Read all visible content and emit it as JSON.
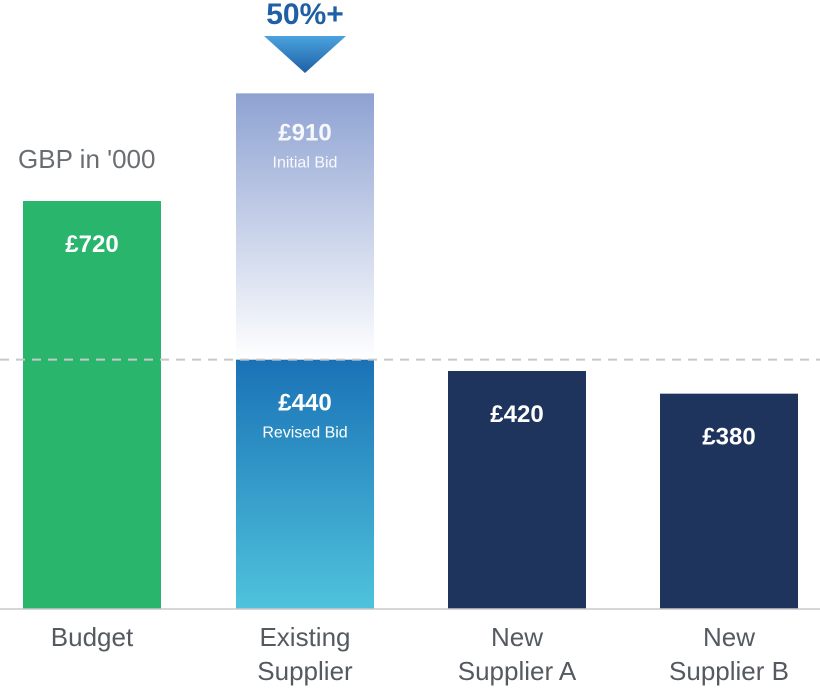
{
  "chart_data": {
    "type": "bar",
    "ylabel": "GBP in '000",
    "categories": [
      "Budget",
      "Existing Supplier",
      "New Supplier A",
      "New Supplier B"
    ],
    "category_lines": [
      [
        "Budget"
      ],
      [
        "Existing",
        "Supplier"
      ],
      [
        "New",
        "Supplier A"
      ],
      [
        "New",
        "Supplier B"
      ]
    ],
    "values": [
      720,
      440,
      420,
      380
    ],
    "value_labels": [
      "£720",
      "£440",
      "£420",
      "£380"
    ],
    "bar_sublabels": [
      "",
      "Revised Bid",
      "",
      ""
    ],
    "initial_bid": {
      "category": "Existing Supplier",
      "value": 910,
      "label": "£910",
      "sublabel": "Initial Bid"
    },
    "annotation": {
      "text": "50%+",
      "category": "Existing Supplier"
    },
    "reference_line": {
      "value": 440,
      "style": "dashed"
    },
    "ylim": [
      0,
      1000
    ],
    "grid": false,
    "colors": {
      "budget": "#2ab56d",
      "revised_top": "#1a72b6",
      "revised_bottom": "#4fc3dc",
      "initial_top": "#8ea2d2",
      "initial_bottom": "#ffffff",
      "new_supplier": "#1f345c",
      "annotation_top": "#4aa3df",
      "annotation_bottom": "#1f5fa5",
      "annotation_text": "#1f5fa5",
      "axis": "#c8c8c8",
      "reference_line": "#c8c8c8",
      "label_text": "#555a60",
      "ylabel_text": "#6a6e72"
    }
  }
}
